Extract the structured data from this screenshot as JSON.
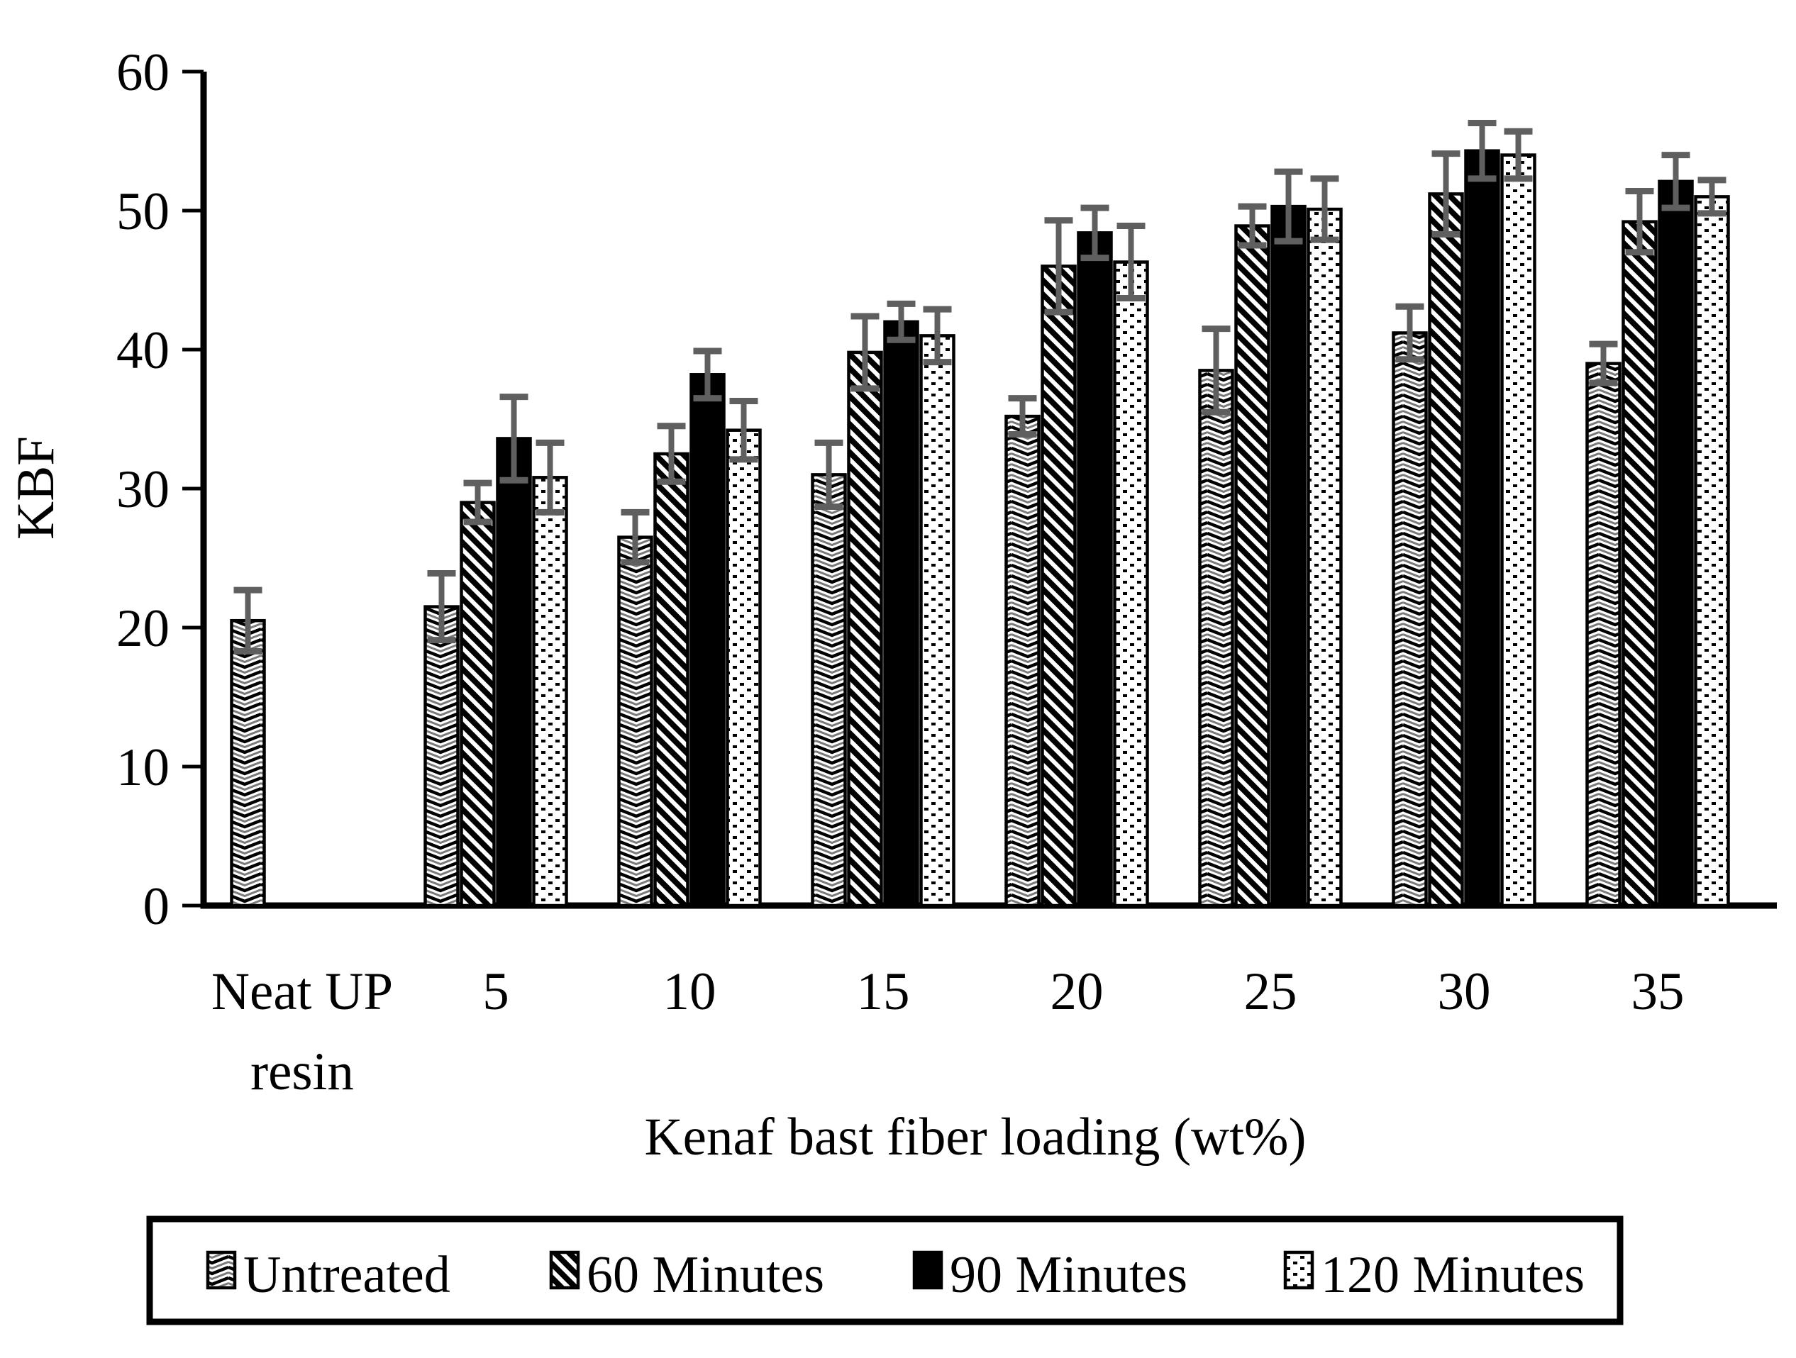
{
  "figure": {
    "background": "#ffffff",
    "axis_color": "#000000",
    "error_bar_color": "#5f5f5f",
    "pattern_shadow_color": "#7a7a7a",
    "legend_border_color": "#000000"
  },
  "chart_data": {
    "type": "bar",
    "title": "",
    "xlabel": "Kenaf bast fiber loading (wt%)",
    "ylabel": "KBF",
    "ylim": [
      0,
      60
    ],
    "yticks": [
      0,
      10,
      20,
      30,
      40,
      50,
      60
    ],
    "grid": false,
    "legend_position": "bottom-box",
    "error_bars": true,
    "categories": [
      "Neat UP resin",
      "5",
      "10",
      "15",
      "20",
      "25",
      "30",
      "35"
    ],
    "category_label_lines": [
      [
        "Neat UP",
        "resin"
      ],
      [
        "5"
      ],
      [
        "10"
      ],
      [
        "15"
      ],
      [
        "20"
      ],
      [
        "25"
      ],
      [
        "30"
      ],
      [
        "35"
      ]
    ],
    "series": [
      {
        "name": "Untreated",
        "pattern": "chevron",
        "values": [
          20.5,
          21.5,
          26.5,
          31.0,
          35.2,
          38.5,
          41.2,
          39.0
        ],
        "errors": [
          2.2,
          2.4,
          1.8,
          2.3,
          1.3,
          3.0,
          1.9,
          1.4
        ]
      },
      {
        "name": "60 Minutes",
        "pattern": "diagonal-stripes",
        "values": [
          null,
          29.0,
          32.5,
          39.8,
          46.0,
          48.9,
          51.2,
          49.2
        ],
        "errors": [
          null,
          1.4,
          2.0,
          2.6,
          3.3,
          1.4,
          2.9,
          2.2
        ]
      },
      {
        "name": "90 Minutes",
        "pattern": "solid",
        "values": [
          null,
          33.6,
          38.2,
          42.0,
          48.4,
          50.3,
          54.3,
          52.1
        ],
        "errors": [
          null,
          3.0,
          1.7,
          1.3,
          1.8,
          2.5,
          2.0,
          1.9
        ]
      },
      {
        "name": "120 Minutes",
        "pattern": "dots",
        "values": [
          null,
          30.8,
          34.2,
          41.0,
          46.3,
          50.1,
          54.0,
          51.0
        ],
        "errors": [
          null,
          2.5,
          2.1,
          1.9,
          2.6,
          2.2,
          1.7,
          1.2
        ]
      }
    ]
  }
}
